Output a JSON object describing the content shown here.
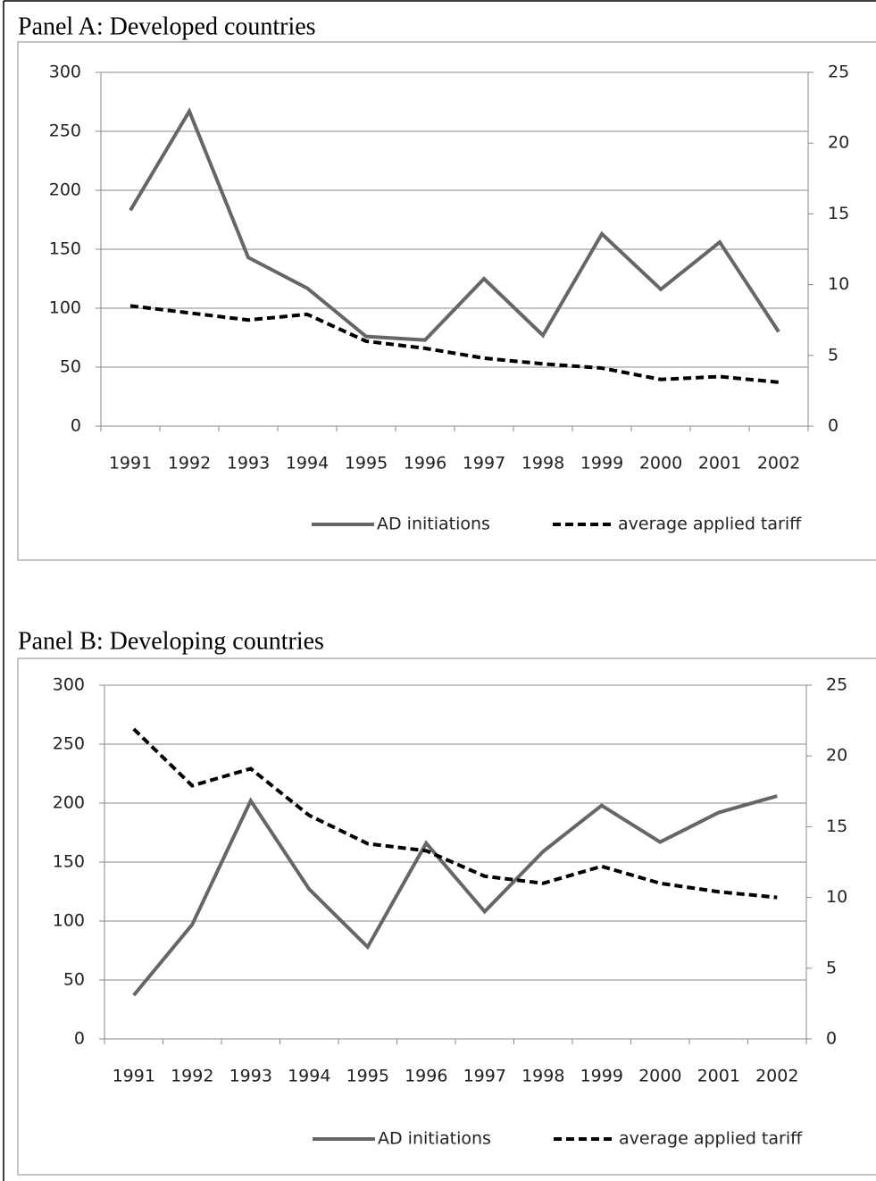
{
  "chart_data": [
    {
      "type": "line",
      "title": "Panel A: Developed countries",
      "categories": [
        "1991",
        "1992",
        "1993",
        "1994",
        "1995",
        "1996",
        "1997",
        "1998",
        "1999",
        "2000",
        "2001",
        "2002"
      ],
      "series": [
        {
          "name": "AD initiations",
          "color": "#666666",
          "style": "solid",
          "values": [
            183,
            267,
            143,
            117,
            76,
            73,
            125,
            77,
            163,
            116,
            156,
            80
          ]
        },
        {
          "name": "average applied tariff",
          "color": "#000000",
          "style": "dashed",
          "axis": "y2",
          "values": [
            8.5,
            8.0,
            7.5,
            7.9,
            6.0,
            5.5,
            4.8,
            4.4,
            4.1,
            3.3,
            3.5,
            3.1
          ]
        }
      ],
      "ylim": [
        0,
        300
      ],
      "yticks": [
        0,
        50,
        100,
        150,
        200,
        250,
        300
      ],
      "y2lim": [
        0,
        25
      ],
      "y2ticks": [
        0,
        5,
        10,
        15,
        20,
        25
      ],
      "grid": true,
      "legend": "bottom"
    },
    {
      "type": "line",
      "title": "Panel B: Developing countries",
      "categories": [
        "1991",
        "1992",
        "1993",
        "1994",
        "1995",
        "1996",
        "1997",
        "1998",
        "1999",
        "2000",
        "2001",
        "2002"
      ],
      "series": [
        {
          "name": "AD initiations",
          "color": "#666666",
          "style": "solid",
          "values": [
            37,
            97,
            202,
            127,
            78,
            166,
            108,
            159,
            198,
            167,
            192,
            206
          ]
        },
        {
          "name": "average applied tariff",
          "color": "#000000",
          "style": "dashed",
          "axis": "y2",
          "values": [
            21.9,
            17.9,
            19.1,
            15.8,
            13.8,
            13.3,
            11.5,
            11.0,
            12.2,
            11.0,
            10.4,
            10.0
          ]
        }
      ],
      "ylim": [
        0,
        300
      ],
      "yticks": [
        0,
        50,
        100,
        150,
        200,
        250,
        300
      ],
      "y2lim": [
        0,
        25
      ],
      "y2ticks": [
        0,
        5,
        10,
        15,
        20,
        25
      ],
      "grid": true,
      "legend": "bottom"
    }
  ]
}
